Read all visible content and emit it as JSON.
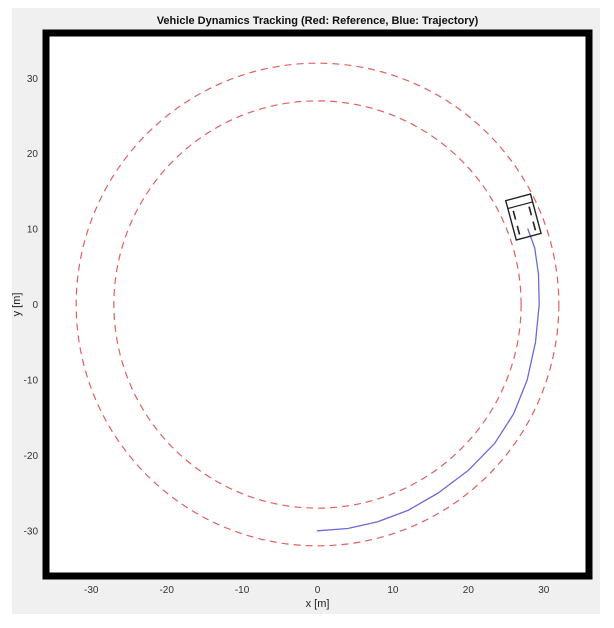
{
  "chart_data": {
    "type": "line",
    "title": "Vehicle Dynamics Tracking (Red: Reference, Blue: Trajectory)",
    "xlabel": "x [m]",
    "ylabel": "y [m]",
    "xlim": [
      -36,
      36
    ],
    "ylim": [
      -36,
      36
    ],
    "xticks": [
      -30,
      -20,
      -10,
      0,
      10,
      20,
      30
    ],
    "yticks": [
      -30,
      -20,
      -10,
      0,
      10,
      20,
      30
    ],
    "grid": false,
    "series": [
      {
        "style": "dashed",
        "color": "#e06060",
        "center": [
          0,
          0
        ],
        "radius": 32
      },
      {
        "style": "dashed",
        "color": "#e06060",
        "center": [
          0,
          0
        ],
        "radius": 27
      },
      {
        "style": "solid",
        "color": "#6b6bd6",
        "x": [
          0,
          4,
          8,
          12,
          16,
          20,
          23.5,
          26,
          27.8,
          28.9,
          29.4,
          29.3,
          28.8,
          27.9
        ],
        "y": [
          -30,
          -29.7,
          -28.8,
          -27.3,
          -25,
          -22,
          -18.4,
          -14.5,
          -10,
          -5,
          0,
          4,
          7.5,
          10
        ]
      }
    ],
    "vehicle": {
      "center": [
        27.3,
        11.6
      ],
      "length": 5.4,
      "width": 3.4,
      "heading_deg": 105,
      "color": "#222222"
    }
  }
}
